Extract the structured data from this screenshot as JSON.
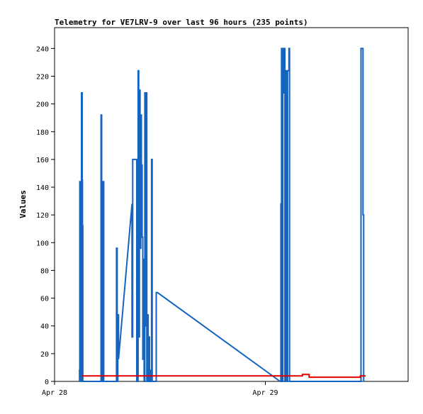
{
  "chart_data": {
    "type": "line",
    "title": "Telemetry for VE7LRV-9 over last 96 hours (235 points)",
    "xlabel": "",
    "ylabel": "Values",
    "xlim": [
      0,
      52.5
    ],
    "ylim": [
      0,
      255
    ],
    "yticks": [
      0,
      20,
      40,
      60,
      80,
      100,
      120,
      140,
      160,
      180,
      200,
      220,
      240
    ],
    "xticks": [
      {
        "label": "Apr 28",
        "x": 0
      },
      {
        "label": "Apr 29",
        "x": 31.3
      }
    ],
    "grid": false,
    "legend": "none",
    "series": [
      {
        "color": "#1565c0",
        "points": [
          [
            3.7,
            0
          ],
          [
            3.7,
            8
          ],
          [
            3.75,
            8
          ],
          [
            3.75,
            144
          ],
          [
            3.8,
            144
          ],
          [
            3.8,
            120
          ],
          [
            3.85,
            120
          ],
          [
            3.85,
            103
          ],
          [
            3.9,
            103
          ],
          [
            3.9,
            0
          ],
          [
            4.0,
            0
          ],
          [
            4.0,
            208
          ],
          [
            4.1,
            208
          ],
          [
            4.1,
            145
          ],
          [
            4.15,
            145
          ],
          [
            4.15,
            112
          ],
          [
            4.2,
            112
          ],
          [
            4.2,
            0
          ],
          [
            6.9,
            0
          ],
          [
            6.9,
            192
          ],
          [
            7.0,
            192
          ],
          [
            7.0,
            0
          ],
          [
            7.2,
            0
          ],
          [
            7.2,
            144
          ],
          [
            7.3,
            144
          ],
          [
            7.3,
            0
          ],
          [
            9.2,
            0
          ],
          [
            9.2,
            96
          ],
          [
            9.3,
            96
          ],
          [
            9.3,
            0
          ],
          [
            9.4,
            0
          ],
          [
            9.4,
            48
          ],
          [
            9.5,
            48
          ],
          [
            9.5,
            16
          ],
          [
            11.5,
            128
          ],
          [
            11.5,
            32
          ],
          [
            11.6,
            32
          ],
          [
            11.6,
            160
          ],
          [
            12.2,
            160
          ],
          [
            12.2,
            0
          ],
          [
            12.4,
            0
          ],
          [
            12.4,
            224
          ],
          [
            12.5,
            224
          ],
          [
            12.5,
            32
          ],
          [
            12.6,
            32
          ],
          [
            12.6,
            210
          ],
          [
            12.7,
            210
          ],
          [
            12.7,
            96
          ],
          [
            12.8,
            96
          ],
          [
            12.8,
            192
          ],
          [
            12.9,
            192
          ],
          [
            12.9,
            156
          ],
          [
            13.0,
            156
          ],
          [
            13.0,
            104
          ],
          [
            13.1,
            104
          ],
          [
            13.1,
            16
          ],
          [
            13.2,
            16
          ],
          [
            13.2,
            88
          ],
          [
            13.3,
            88
          ],
          [
            13.3,
            0
          ],
          [
            13.4,
            0
          ],
          [
            13.4,
            208
          ],
          [
            13.5,
            208
          ],
          [
            13.5,
            40
          ],
          [
            13.6,
            40
          ],
          [
            13.6,
            208
          ],
          [
            13.7,
            208
          ],
          [
            13.7,
            0
          ],
          [
            13.8,
            0
          ],
          [
            13.8,
            48
          ],
          [
            13.9,
            48
          ],
          [
            13.9,
            0
          ],
          [
            14.0,
            0
          ],
          [
            14.0,
            32
          ],
          [
            14.1,
            32
          ],
          [
            14.1,
            0
          ],
          [
            14.3,
            0
          ],
          [
            14.3,
            8
          ],
          [
            14.4,
            8
          ],
          [
            14.4,
            160
          ],
          [
            14.5,
            160
          ],
          [
            14.5,
            0
          ],
          [
            15.1,
            0
          ],
          [
            15.1,
            64
          ],
          [
            15.3,
            64
          ],
          [
            33.5,
            0
          ],
          [
            33.6,
            0
          ],
          [
            33.6,
            128
          ],
          [
            33.7,
            128
          ],
          [
            33.7,
            240
          ],
          [
            33.8,
            240
          ],
          [
            33.8,
            0
          ],
          [
            33.9,
            0
          ],
          [
            33.9,
            208
          ],
          [
            34.0,
            208
          ],
          [
            34.0,
            240
          ],
          [
            34.2,
            240
          ],
          [
            34.2,
            0
          ],
          [
            34.3,
            0
          ],
          [
            34.3,
            224
          ],
          [
            34.5,
            224
          ],
          [
            34.5,
            0
          ],
          [
            34.6,
            0
          ],
          [
            34.6,
            224
          ],
          [
            34.8,
            224
          ],
          [
            34.8,
            240
          ],
          [
            34.9,
            240
          ],
          [
            34.9,
            0
          ],
          [
            45.5,
            0
          ],
          [
            45.5,
            240
          ],
          [
            45.8,
            240
          ],
          [
            45.8,
            120
          ],
          [
            45.9,
            120
          ],
          [
            45.9,
            0
          ]
        ]
      },
      {
        "color": "#e00000",
        "points": [
          [
            4.0,
            4
          ],
          [
            36.8,
            4
          ],
          [
            36.8,
            5
          ],
          [
            37.8,
            5
          ],
          [
            37.8,
            3
          ],
          [
            45.4,
            3
          ],
          [
            45.4,
            4
          ],
          [
            46.2,
            4
          ]
        ]
      }
    ]
  }
}
